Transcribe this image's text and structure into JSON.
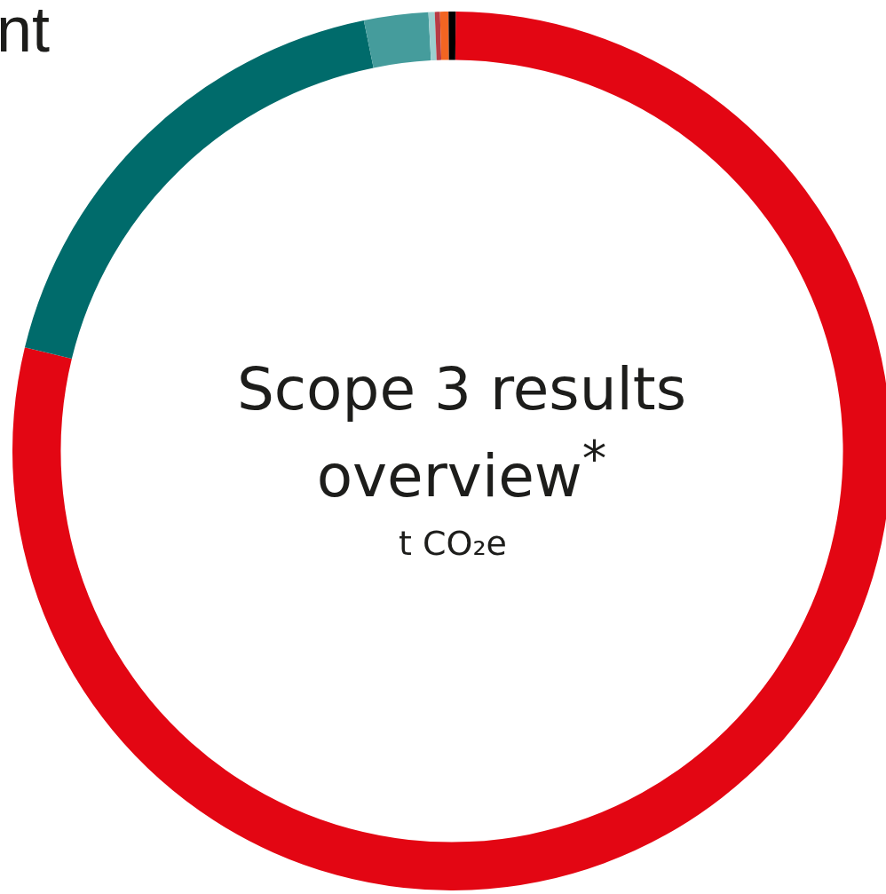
{
  "chart_data": {
    "type": "donut",
    "title": "Scope 3 results overview$^{*}$",
    "subtitle": "t CO₂e",
    "annotations": [
      "nt"
    ],
    "categories": [
      null,
      null,
      null,
      null,
      null,
      null,
      null
    ],
    "values": [
      78.65,
      18.0,
      2.36,
      0.23,
      0.19,
      0.31,
      0.26
    ],
    "colors": [
      "#e30613",
      "#006b6b",
      "#459c9c",
      "#9ccfd0",
      "#b83a44",
      "#f26522",
      "#000000"
    ],
    "legend": false
  }
}
